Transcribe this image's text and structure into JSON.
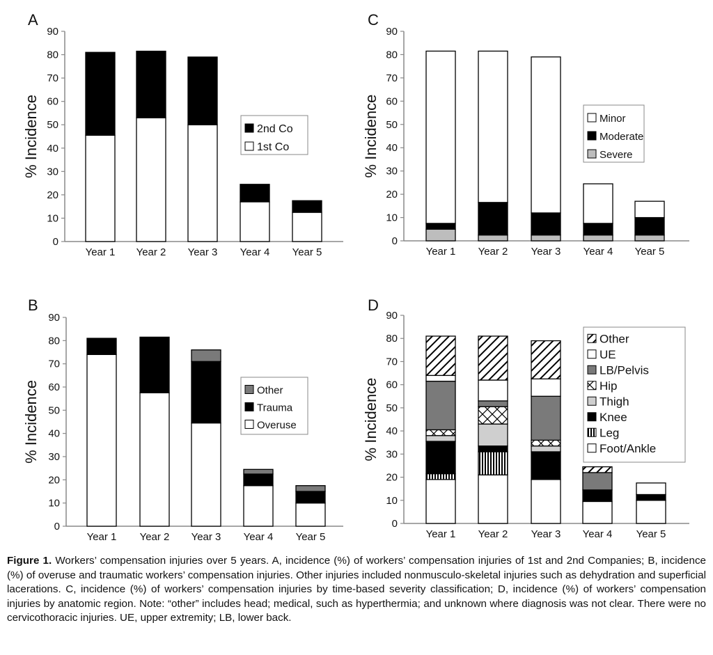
{
  "figure": {
    "caption_label": "Figure 1.",
    "caption_text": "Workers’ compensation injuries over 5 years. A, incidence (%) of workers’ compensation injuries of 1st and 2nd Companies; B, incidence (%) of overuse and traumatic workers’ compensation injuries. Other injuries included nonmusculo-skeletal injuries such as dehydration and superficial lacerations. C, incidence (%) of workers’ compensation injuries by time-based severity classification; D, incidence (%) of workers’ compensation injuries by anatomic region. Note: “other” includes head; medical, such as hyperthermia; and unknown where diagnosis was not clear. There were no cervicothoracic injuries. UE, upper extremity; LB, lower back."
  },
  "chart_data": [
    {
      "panel": "A",
      "type": "bar",
      "stacked": true,
      "ylabel": "% Incidence",
      "ylim": [
        0,
        90
      ],
      "yticks": [
        0,
        10,
        20,
        30,
        40,
        50,
        60,
        70,
        80,
        90
      ],
      "categories": [
        "Year 1",
        "Year 2",
        "Year 3",
        "Year 4",
        "Year 5"
      ],
      "series": [
        {
          "name": "1st Co",
          "color": "#ffffff",
          "pattern": "white",
          "values": [
            45.5,
            53,
            50,
            17,
            12.5
          ]
        },
        {
          "name": "2nd Co",
          "color": "#000000",
          "pattern": "black",
          "values": [
            35.5,
            28.5,
            29,
            7.5,
            5
          ]
        }
      ],
      "legend_order": [
        "2nd Co",
        "1st Co"
      ],
      "legend_position": "right"
    },
    {
      "panel": "C",
      "type": "bar",
      "stacked": true,
      "ylabel": "% Incidence",
      "ylim": [
        0,
        90
      ],
      "yticks": [
        0,
        10,
        20,
        30,
        40,
        50,
        60,
        70,
        80,
        90
      ],
      "categories": [
        "Year 1",
        "Year 2",
        "Year 3",
        "Year 4",
        "Year 5"
      ],
      "series": [
        {
          "name": "Severe",
          "color": "#bbbbbb",
          "pattern": "gray",
          "values": [
            5,
            2.5,
            2.5,
            2.5,
            2.5
          ]
        },
        {
          "name": "Moderate",
          "color": "#000000",
          "pattern": "black",
          "values": [
            2.5,
            14,
            9.5,
            5,
            7.5
          ]
        },
        {
          "name": "Minor",
          "color": "#ffffff",
          "pattern": "white",
          "values": [
            74,
            65,
            67,
            17,
            7
          ]
        }
      ],
      "legend_order": [
        "Minor",
        "Moderate",
        "Severe"
      ],
      "legend_position": "right"
    },
    {
      "panel": "B",
      "type": "bar",
      "stacked": true,
      "ylabel": "% Incidence",
      "ylim": [
        0,
        90
      ],
      "yticks": [
        0,
        10,
        20,
        30,
        40,
        50,
        60,
        70,
        80,
        90
      ],
      "categories": [
        "Year 1",
        "Year 2",
        "Year 3",
        "Year 4",
        "Year 5"
      ],
      "series": [
        {
          "name": "Overuse",
          "color": "#ffffff",
          "pattern": "white",
          "values": [
            74,
            57.5,
            44.5,
            17.5,
            10
          ]
        },
        {
          "name": "Trauma",
          "color": "#000000",
          "pattern": "black",
          "values": [
            7,
            24,
            26.5,
            5,
            5
          ]
        },
        {
          "name": "Other",
          "color": "#888888",
          "pattern": "darkgray",
          "values": [
            0,
            0,
            5,
            2,
            2.5
          ]
        }
      ],
      "legend_order": [
        "Other",
        "Trauma",
        "Overuse"
      ],
      "legend_position": "right"
    },
    {
      "panel": "D",
      "type": "bar",
      "stacked": true,
      "ylabel": "% Incidence",
      "ylim": [
        0,
        90
      ],
      "yticks": [
        0,
        10,
        20,
        30,
        40,
        50,
        60,
        70,
        80,
        90
      ],
      "categories": [
        "Year 1",
        "Year 2",
        "Year 3",
        "Year 4",
        "Year 5"
      ],
      "series": [
        {
          "name": "Foot/Ankle",
          "color": "#ffffff",
          "pattern": "white",
          "values": [
            19,
            21,
            19,
            9.5,
            10
          ]
        },
        {
          "name": "Leg",
          "color": "#000000",
          "pattern": "vlines",
          "values": [
            2.5,
            10,
            0,
            0,
            0
          ]
        },
        {
          "name": "Knee",
          "color": "#000000",
          "pattern": "black",
          "values": [
            14,
            2.5,
            12,
            5,
            2.5
          ]
        },
        {
          "name": "Thigh",
          "color": "#cccccc",
          "pattern": "lightgray",
          "values": [
            2.5,
            9.5,
            2.5,
            0,
            0
          ]
        },
        {
          "name": "Hip",
          "color": "#ffffff",
          "pattern": "xcross",
          "values": [
            2.5,
            7.5,
            2.5,
            0,
            0
          ]
        },
        {
          "name": "LB/Pelvis",
          "color": "#777777",
          "pattern": "darkgray",
          "values": [
            21,
            2.5,
            19,
            7.5,
            0
          ]
        },
        {
          "name": "UE",
          "color": "#ffffff",
          "pattern": "white",
          "values": [
            2.5,
            9,
            7.5,
            0,
            5
          ]
        },
        {
          "name": "Other",
          "color": "#000000",
          "pattern": "diag",
          "values": [
            17,
            19,
            16.5,
            2.5,
            0
          ]
        }
      ],
      "legend_order": [
        "Other",
        "UE",
        "LB/Pelvis",
        "Hip",
        "Thigh",
        "Knee",
        "Leg",
        "Foot/Ankle"
      ],
      "legend_position": "right"
    }
  ]
}
